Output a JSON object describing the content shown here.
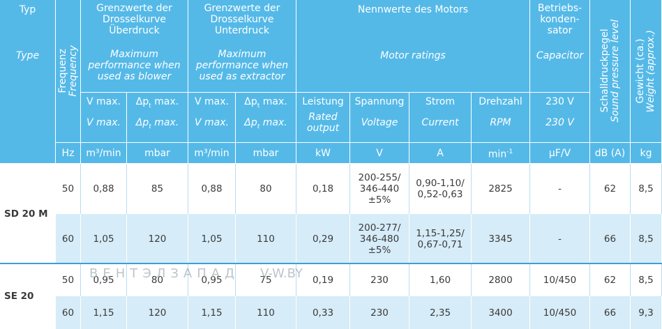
{
  "header": {
    "type": {
      "de": "Typ",
      "en": "Type"
    },
    "frequency": {
      "de": "Frequenz",
      "en": "Frequency"
    },
    "blower": {
      "de": [
        "Grenzwerte der",
        "Drosselkurve",
        "Überdruck"
      ],
      "en": [
        "Maximum",
        "performance when",
        "used as blower"
      ]
    },
    "extractor": {
      "de": [
        "Grenzwerte der",
        "Drosselkurve",
        "Unterdruck"
      ],
      "en": [
        "Maximum",
        "performance when",
        "used as extractor"
      ]
    },
    "motor": {
      "de": "Nennwerte des Motors",
      "en": "Motor ratings"
    },
    "capacitor": {
      "de": [
        "Betriebs-",
        "konden-",
        "sator"
      ],
      "en": "Capacitor"
    },
    "sound": {
      "de": "Schalldruckpegel",
      "en": "Sound pressure level"
    },
    "weight": {
      "de": "Gewicht (ca.)",
      "en": "Weight (approx.)"
    }
  },
  "subheader": [
    {
      "de": "V max.",
      "en": "V max."
    },
    {
      "de": {
        "main": "Δp",
        "sub": "t",
        "rest": " max."
      },
      "en": {
        "main": "Δp",
        "sub": "t",
        "rest": " max."
      }
    },
    {
      "de": "V max.",
      "en": "V max."
    },
    {
      "de": {
        "main": "Δp",
        "sub": "t",
        "rest": " max."
      },
      "en": {
        "main": "Δp",
        "sub": "t",
        "rest": " max."
      }
    },
    {
      "de": "Leistung",
      "en": [
        "Rated",
        "output"
      ]
    },
    {
      "de": "Spannung",
      "en": "Voltage"
    },
    {
      "de": "Strom",
      "en": "Current"
    },
    {
      "de": "Drehzahl",
      "en": "RPM"
    },
    {
      "de": "230 V",
      "en": "230 V"
    }
  ],
  "units": [
    "Hz",
    "m³/min",
    "mbar",
    "m³/min",
    "mbar",
    "kW",
    "V",
    "A",
    {
      "main": "min",
      "sup": "-1"
    },
    "µF/V",
    "dB (A)",
    "kg"
  ],
  "groups": [
    {
      "type": "SD 20 M",
      "rows": [
        [
          "50",
          "0,88",
          "85",
          "0,88",
          "80",
          "0,18",
          [
            "200-255/",
            "346-440",
            "±5%"
          ],
          [
            "0,90-1,10/",
            "0,52-0,63"
          ],
          "2825",
          "-",
          "62",
          "8,5"
        ],
        [
          "60",
          "1,05",
          "120",
          "1,05",
          "110",
          "0,29",
          [
            "200-277/",
            "346-480",
            "±5%"
          ],
          [
            "1,15-1,25/",
            "0,67-0,71"
          ],
          "3345",
          "-",
          "66",
          "8,5"
        ]
      ]
    },
    {
      "type": "SE 20",
      "rows": [
        [
          "50",
          "0,95",
          "80",
          "0,95",
          "75",
          "0,19",
          "230",
          "1,60",
          "2800",
          "10/450",
          "62",
          "8,5"
        ],
        [
          "60",
          "1,15",
          "120",
          "1,15",
          "110",
          "0,33",
          "230",
          "2,35",
          "3400",
          "10/450",
          "66",
          "9,3"
        ]
      ]
    }
  ],
  "watermark": {
    "brand": "ВЕНТЭЛЗАПАД",
    "site": "V-W.BY"
  }
}
